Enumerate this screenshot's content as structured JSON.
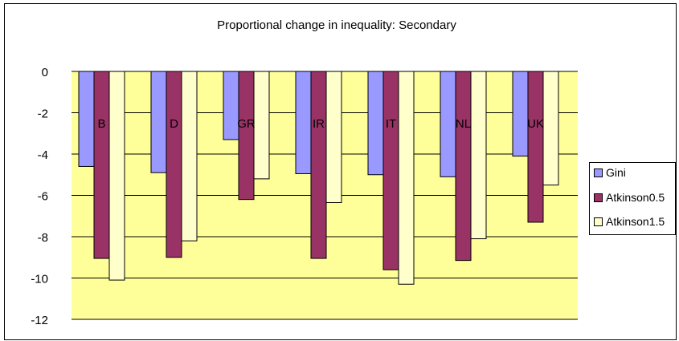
{
  "chart_data": {
    "type": "bar",
    "title": "Proportional change in inequality: Secondary",
    "xlabel": "",
    "ylabel": "",
    "categories": [
      "B",
      "D",
      "GR",
      "IR",
      "IT",
      "NL",
      "UK"
    ],
    "series": [
      {
        "name": "Gini",
        "values": [
          -4.6,
          -4.9,
          -3.3,
          -4.95,
          -5.0,
          -5.1,
          -4.1
        ],
        "color": "#9999ff"
      },
      {
        "name": "Atkinson0.5",
        "values": [
          -9.05,
          -9.0,
          -6.2,
          -9.05,
          -9.6,
          -9.15,
          -7.3
        ],
        "color": "#993366"
      },
      {
        "name": "Atkinson1.5",
        "values": [
          -10.1,
          -8.2,
          -5.2,
          -6.35,
          -10.3,
          -8.1,
          -5.5
        ],
        "color": "#ffffcc"
      }
    ],
    "ylim": [
      -12,
      0
    ],
    "yticks": [
      0,
      -2,
      -4,
      -6,
      -8,
      -10,
      -12
    ],
    "grid": true,
    "legend_position": "right",
    "plot_background": "#ffff99",
    "gridline_color": "#000000"
  }
}
